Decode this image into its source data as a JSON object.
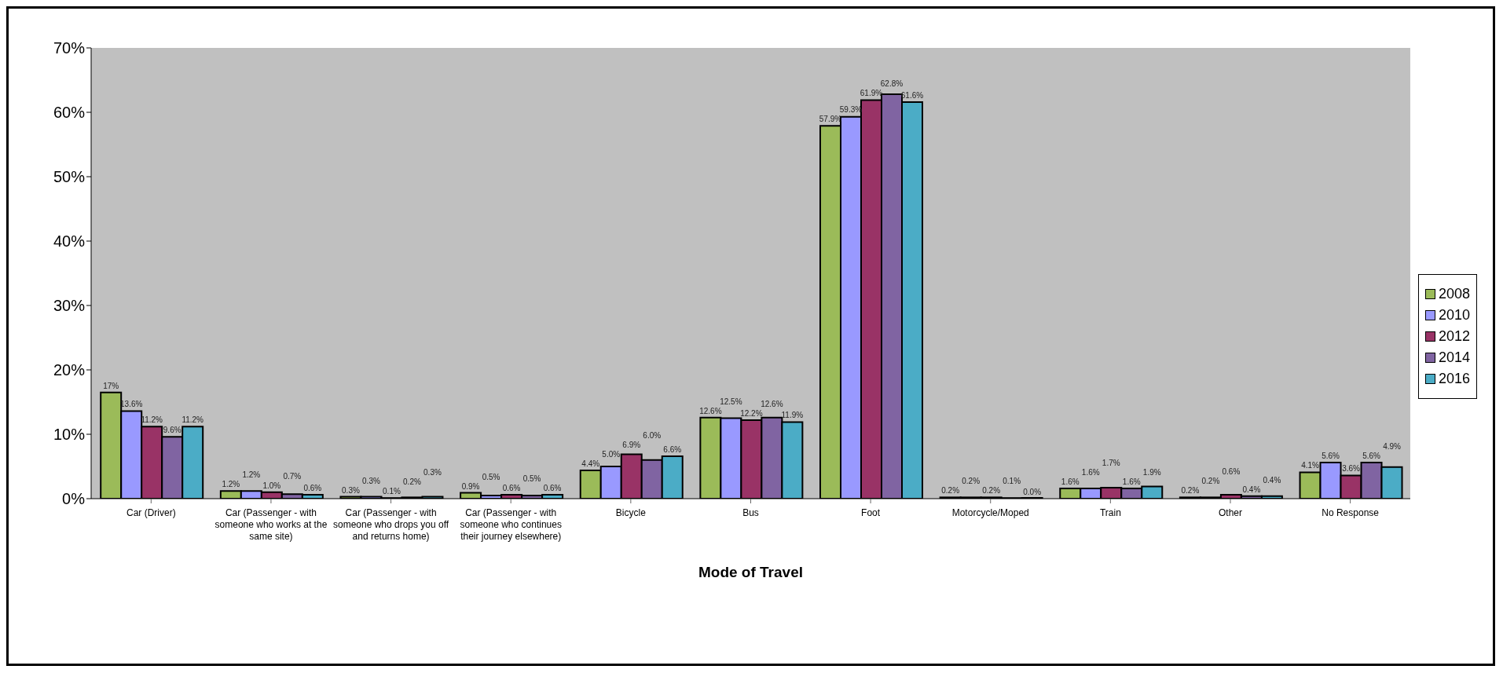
{
  "chart_data": {
    "type": "bar",
    "xlabel": "Mode of Travel",
    "categories": [
      "Car (Driver)",
      "Car (Passenger - with someone who works at the same site)",
      "Car (Passenger - with someone who drops you off and returns home)",
      "Car (Passenger - with someone who continues their journey elsewhere)",
      "Bicycle",
      "Bus",
      "Foot",
      "Motorcycle/Moped",
      "Train",
      "Other",
      "No Response"
    ],
    "series": [
      {
        "name": "2008",
        "color": "#9bbb59",
        "values": [
          16.5,
          1.2,
          0.3,
          0.9,
          4.4,
          12.6,
          57.9,
          0.2,
          1.6,
          0.2,
          4.1
        ],
        "value_labels": [
          "17%",
          "1.2%",
          "0.3%",
          "0.9%",
          "4.4%",
          "12.6%",
          "57.9%",
          "0.2%",
          "1.6%",
          "0.2%",
          "4.1%"
        ]
      },
      {
        "name": "2010",
        "color": "#9999ff",
        "values": [
          13.6,
          1.2,
          0.3,
          0.5,
          5.0,
          12.5,
          59.3,
          0.2,
          1.6,
          0.2,
          5.6
        ],
        "value_labels": [
          "13.6%",
          "1.2%",
          "0.3%",
          "0.5%",
          "5.0%",
          "12.5%",
          "59.3%",
          "0.2%",
          "1.6%",
          "0.2%",
          "5.6%"
        ]
      },
      {
        "name": "2012",
        "color": "#993366",
        "values": [
          11.2,
          1.0,
          0.1,
          0.6,
          6.9,
          12.2,
          61.9,
          0.2,
          1.7,
          0.6,
          3.6
        ],
        "value_labels": [
          "11.2%",
          "1.0%",
          "0.1%",
          "0.6%",
          "6.9%",
          "12.2%",
          "61.9%",
          "0.2%",
          "1.7%",
          "0.6%",
          "3.6%"
        ]
      },
      {
        "name": "2014",
        "color": "#8064a2",
        "values": [
          9.6,
          0.7,
          0.2,
          0.5,
          6.0,
          12.6,
          62.8,
          0.1,
          1.6,
          0.4,
          5.6
        ],
        "value_labels": [
          "9.6%",
          "0.7%",
          "0.2%",
          "0.5%",
          "6.0%",
          "12.6%",
          "62.8%",
          "0.1%",
          "1.6%",
          "0.4%",
          "5.6%"
        ]
      },
      {
        "name": "2016",
        "color": "#4bacc6",
        "values": [
          11.2,
          0.6,
          0.3,
          0.6,
          6.6,
          11.9,
          61.6,
          0.0,
          1.9,
          0.4,
          4.9
        ],
        "value_labels": [
          "11.2%",
          "0.6%",
          "0.3%",
          "0.6%",
          "6.6%",
          "11.9%",
          "61.6%",
          "0.0%",
          "1.9%",
          "0.4%",
          "4.9%"
        ]
      }
    ],
    "ylim": [
      0,
      70
    ],
    "yticks": [
      {
        "value": 0,
        "label": "0%"
      },
      {
        "value": 10,
        "label": "10%"
      },
      {
        "value": 20,
        "label": "20%"
      },
      {
        "value": 30,
        "label": "30%"
      },
      {
        "value": 40,
        "label": "40%"
      },
      {
        "value": 50,
        "label": "50%"
      },
      {
        "value": 60,
        "label": "60%"
      },
      {
        "value": 70,
        "label": "70%"
      }
    ],
    "grid": false,
    "legend": "right"
  }
}
